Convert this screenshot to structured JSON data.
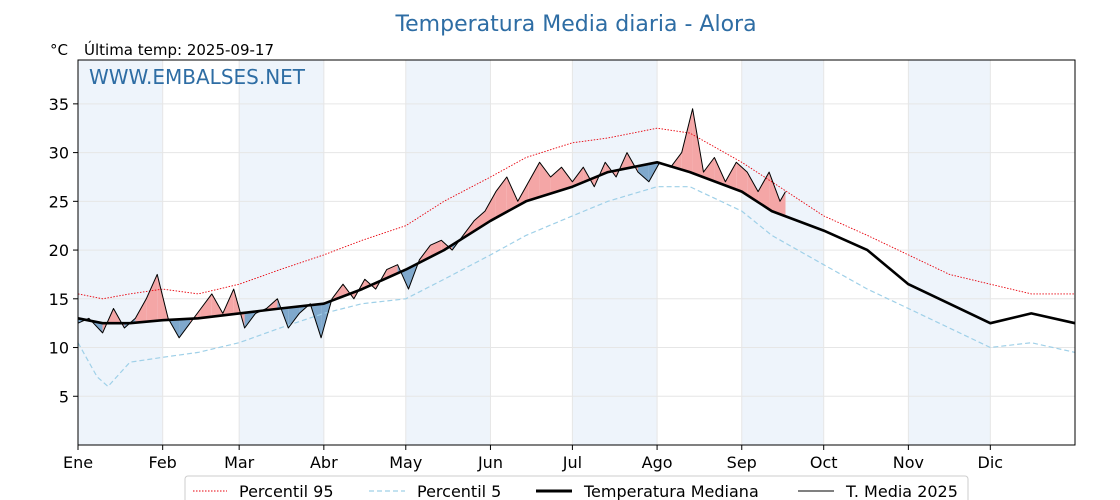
{
  "chart_data": {
    "type": "line",
    "title": "Temperatura Media diaria - Alora",
    "ylabel": "°C",
    "last_temp": "Última temp: 2025-09-17",
    "watermark": "WWW.EMBALSES.NET",
    "ylim": [
      0,
      39.5
    ],
    "yticks": [
      5,
      10,
      15,
      20,
      25,
      30,
      35
    ],
    "month_labels": [
      "Ene",
      "Feb",
      "Mar",
      "Abr",
      "May",
      "Jun",
      "Jul",
      "Ago",
      "Sep",
      "Oct",
      "Nov",
      "Dic"
    ],
    "month_start_days": [
      1,
      32,
      60,
      91,
      121,
      152,
      182,
      213,
      244,
      274,
      305,
      335
    ],
    "x_range_days": [
      1,
      366
    ],
    "grid": true,
    "legend_placement": "bottom",
    "colors": {
      "p95": "#e8000b",
      "p5": "#9fd0e8",
      "median": "#000000",
      "media": "#000000",
      "above": "#f4a6a6",
      "below": "#7fa8cc",
      "band": "#eef4fb"
    },
    "series": [
      {
        "name": "Percentil 95",
        "style": "dotted",
        "days": [
          1,
          10,
          20,
          32,
          45,
          60,
          75,
          91,
          105,
          121,
          135,
          152,
          165,
          182,
          195,
          213,
          225,
          244,
          255,
          274,
          290,
          305,
          320,
          335,
          350,
          366
        ],
        "values": [
          15.5,
          15,
          15.5,
          16,
          15.5,
          16.5,
          18,
          19.5,
          21,
          22.5,
          25,
          27.5,
          29.5,
          31,
          31.5,
          32.5,
          32,
          29,
          27,
          23.5,
          21.5,
          19.5,
          17.5,
          16.5,
          15.5,
          15.5
        ]
      },
      {
        "name": "Percentil 5",
        "style": "dashed",
        "days": [
          1,
          8,
          12,
          20,
          32,
          45,
          60,
          75,
          91,
          105,
          121,
          135,
          152,
          165,
          182,
          195,
          213,
          225,
          244,
          255,
          274,
          290,
          305,
          320,
          335,
          350,
          366
        ],
        "values": [
          10.5,
          7,
          6,
          8.5,
          9,
          9.5,
          10.5,
          12,
          13.5,
          14.5,
          15,
          17,
          19.5,
          21.5,
          23.5,
          25,
          26.5,
          26.5,
          24,
          21.5,
          18.5,
          16,
          14,
          12,
          10,
          10.5,
          9.5
        ]
      },
      {
        "name": "Temperatura Mediana",
        "style": "solid-thick",
        "days": [
          1,
          10,
          20,
          32,
          45,
          60,
          75,
          91,
          105,
          121,
          135,
          152,
          165,
          182,
          195,
          213,
          225,
          244,
          255,
          274,
          290,
          305,
          320,
          335,
          350,
          366
        ],
        "values": [
          13,
          12.5,
          12.5,
          12.8,
          13,
          13.5,
          14,
          14.5,
          16,
          18,
          20,
          23,
          25,
          26.5,
          28,
          29,
          28,
          26,
          24,
          22,
          20,
          16.5,
          14.5,
          12.5,
          13.5,
          12.5
        ]
      },
      {
        "name": "T. Media 2025",
        "style": "solid-thin",
        "days": [
          1,
          5,
          10,
          14,
          18,
          22,
          26,
          30,
          34,
          38,
          42,
          46,
          50,
          54,
          58,
          62,
          66,
          70,
          74,
          78,
          82,
          86,
          90,
          94,
          98,
          102,
          106,
          110,
          114,
          118,
          122,
          126,
          130,
          134,
          138,
          142,
          146,
          150,
          154,
          158,
          162,
          166,
          170,
          174,
          178,
          182,
          186,
          190,
          194,
          198,
          202,
          206,
          210,
          214,
          218,
          222,
          226,
          230,
          234,
          238,
          242,
          246,
          250,
          254,
          258,
          260
        ],
        "values": [
          12.5,
          13,
          11.5,
          14,
          12,
          13,
          15,
          17.5,
          13,
          11,
          12.5,
          14,
          15.5,
          13.5,
          16,
          12,
          13.5,
          14,
          15,
          12,
          13.5,
          14.5,
          11,
          15,
          16.5,
          15,
          17,
          16,
          18,
          18.5,
          16,
          19,
          20.5,
          21,
          20,
          21.5,
          23,
          24,
          26,
          27.5,
          25,
          27,
          29,
          27.5,
          28.5,
          27,
          28.5,
          26.5,
          29,
          27.5,
          30,
          28,
          27,
          29,
          28.5,
          30,
          34.5,
          28,
          29.5,
          27,
          29,
          28,
          26,
          28,
          25,
          26
        ]
      }
    ]
  }
}
